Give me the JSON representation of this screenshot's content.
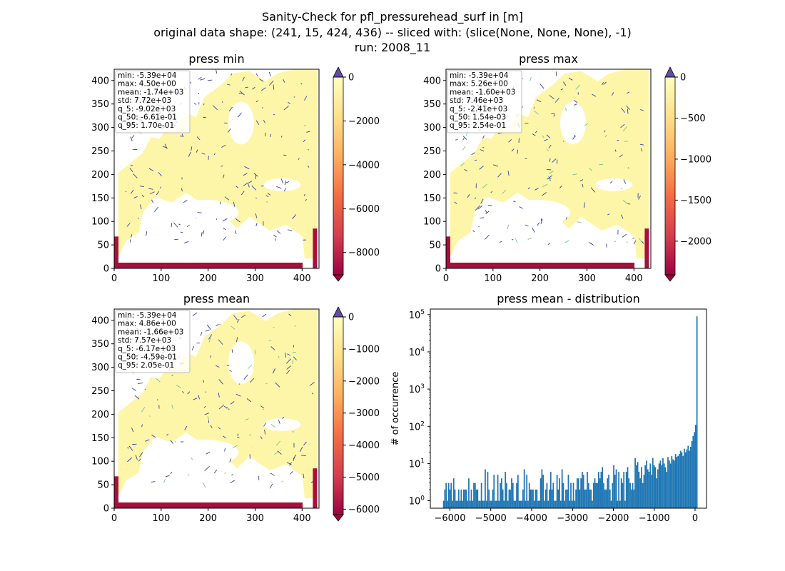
{
  "figure": {
    "title_lines": [
      "Sanity-Check for pfl_pressurehead_surf in [m]",
      "original data shape: (241, 15, 424, 436) -- sliced with: (slice(None, None, None), -1)",
      "run: 2008_11"
    ]
  },
  "colors": {
    "land": "#fdf6a8",
    "land_dark": "#f7ec8e",
    "river": "#3a3fa8",
    "river_green": "#7cc08c",
    "boundary": "#a5103c",
    "hist_bar": "#1f77b4",
    "axis": "#000000"
  },
  "colorbar_colors": [
    "#9e0142",
    "#d53e4f",
    "#f46d43",
    "#fdae61",
    "#fee08b",
    "#ffffbf"
  ],
  "colorbar_over_color": "#5e4fa2",
  "chart_data": [
    {
      "type": "heatmap",
      "title": "press min",
      "xlim": [
        0,
        436
      ],
      "ylim": [
        0,
        424
      ],
      "xticks": [
        "0",
        "100",
        "200",
        "300",
        "400"
      ],
      "yticks": [
        "0",
        "50",
        "100",
        "150",
        "200",
        "250",
        "300",
        "350",
        "400"
      ],
      "colorbar": {
        "vmin": -9020,
        "vmax": 0,
        "ticks": [
          "0",
          "−2000",
          "−4000",
          "−6000",
          "−8000"
        ],
        "tick_values": [
          0,
          -2000,
          -4000,
          -6000,
          -8000
        ]
      },
      "stats": [
        "min: -5.39e+04",
        "max: 4.50e+00",
        "mean: -1.74e+03",
        "std: 7.72e+03",
        "q_5: -9.02e+03",
        "q_50: -6.61e-01",
        "q_95: 1.70e-01"
      ]
    },
    {
      "type": "heatmap",
      "title": "press max",
      "xlim": [
        0,
        436
      ],
      "ylim": [
        0,
        424
      ],
      "xticks": [
        "0",
        "100",
        "200",
        "300",
        "400"
      ],
      "yticks": [
        "0",
        "50",
        "100",
        "150",
        "200",
        "250",
        "300",
        "350",
        "400"
      ],
      "colorbar": {
        "vmin": -2410,
        "vmax": 0,
        "ticks": [
          "0",
          "−500",
          "−1000",
          "−1500",
          "−2000"
        ],
        "tick_values": [
          0,
          -500,
          -1000,
          -1500,
          -2000
        ]
      },
      "stats": [
        "min: -5.39e+04",
        "max: 5.26e+00",
        "mean: -1.60e+03",
        "std: 7.46e+03",
        "q_5: -2.41e+03",
        "q_50: 1.54e-03",
        "q_95: 2.54e-01"
      ]
    },
    {
      "type": "heatmap",
      "title": "press mean",
      "xlim": [
        0,
        436
      ],
      "ylim": [
        0,
        424
      ],
      "xticks": [
        "0",
        "100",
        "200",
        "300",
        "400"
      ],
      "yticks": [
        "0",
        "50",
        "100",
        "150",
        "200",
        "250",
        "300",
        "350",
        "400"
      ],
      "colorbar": {
        "vmin": -6170,
        "vmax": 0,
        "ticks": [
          "0",
          "−1000",
          "−2000",
          "−3000",
          "−4000",
          "−5000",
          "−6000"
        ],
        "tick_values": [
          0,
          -1000,
          -2000,
          -3000,
          -4000,
          -5000,
          -6000
        ]
      },
      "stats": [
        "min: -5.39e+04",
        "max: 4.86e+00",
        "mean: -1.66e+03",
        "std: 7.57e+03",
        "q_5: -6.17e+03",
        "q_50: -4.59e-01",
        "q_95: 2.05e-01"
      ]
    },
    {
      "type": "bar",
      "title": "press mean - distribution",
      "ylabel": "# of occurrence",
      "xlabel": "",
      "yscale": "log",
      "xlim": [
        -6480,
        280
      ],
      "ylim_log10": [
        -0.2,
        5.15
      ],
      "xticks": [
        -6000,
        -5000,
        -4000,
        -3000,
        -2000,
        -1000,
        0
      ],
      "xtick_labels": [
        "−6000",
        "−5000",
        "−4000",
        "−3000",
        "−2000",
        "−1000",
        "0"
      ],
      "yticks_log10": [
        0,
        1,
        2,
        3,
        4,
        5
      ],
      "ytick_bases": [
        "10",
        "10",
        "10",
        "10",
        "10",
        "10"
      ],
      "ytick_exps": [
        "0",
        "1",
        "2",
        "3",
        "4",
        "5"
      ],
      "bin_start": -6170,
      "bin_width": 30.85,
      "counts": [
        1,
        2,
        3,
        1,
        3,
        2,
        3,
        1,
        4,
        2,
        1,
        1,
        2,
        1,
        2,
        1,
        2,
        2,
        2,
        1,
        4,
        1,
        2,
        1,
        3,
        3,
        2,
        2,
        1,
        1,
        3,
        1,
        1,
        7,
        1,
        6,
        2,
        1,
        1,
        2,
        5,
        1,
        1,
        5,
        1,
        3,
        4,
        2,
        1,
        6,
        3,
        1,
        2,
        2,
        4,
        3,
        1,
        1,
        3,
        5,
        1,
        1,
        1,
        2,
        7,
        1,
        5,
        1,
        3,
        2,
        2,
        2,
        1,
        2,
        2,
        1,
        1,
        4,
        7,
        5,
        1,
        2,
        3,
        1,
        2,
        6,
        2,
        3,
        1,
        1,
        5,
        2,
        4,
        1,
        7,
        3,
        1,
        2,
        2,
        5,
        1,
        3,
        1,
        3,
        1,
        2,
        4,
        4,
        2,
        4,
        6,
        5,
        2,
        2,
        6,
        3,
        2,
        2,
        1,
        3,
        4,
        3,
        3,
        6,
        4,
        6,
        8,
        3,
        2,
        2,
        4,
        5,
        2,
        1,
        3,
        9,
        5,
        7,
        1,
        6,
        1,
        4,
        3,
        6,
        1,
        6,
        8,
        4,
        3,
        2,
        3,
        2,
        14,
        9,
        11,
        6,
        4,
        8,
        3,
        5,
        9,
        12,
        7,
        6,
        10,
        5,
        14,
        9,
        8,
        4,
        7,
        10,
        12,
        9,
        14,
        10,
        8,
        6,
        15,
        12,
        10,
        16,
        13,
        12,
        18,
        15,
        16,
        18,
        22,
        20,
        16,
        25,
        20,
        24,
        30,
        22,
        28,
        40,
        55,
        70,
        110,
        90000
      ]
    }
  ]
}
